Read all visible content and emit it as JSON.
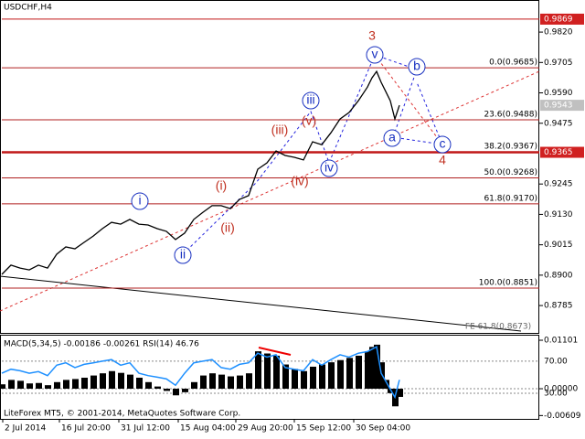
{
  "chart_data": [
    {
      "type": "line",
      "title": "USDCHF,H4",
      "color": "#000000",
      "x": [
        0,
        10,
        20,
        30,
        40,
        50,
        60,
        70,
        80,
        90,
        100,
        110,
        120,
        130,
        140,
        150,
        160,
        170,
        180,
        190,
        200,
        210,
        220,
        230,
        240,
        250,
        260,
        270,
        280,
        290,
        300,
        310,
        320,
        330,
        340,
        350,
        360,
        370,
        380,
        390,
        400,
        405,
        410,
        415,
        420,
        425,
        430,
        435
      ],
      "values": [
        0.8903,
        0.8938,
        0.8927,
        0.892,
        0.8938,
        0.8927,
        0.8979,
        0.9007,
        0.9,
        0.9024,
        0.9048,
        0.9076,
        0.91,
        0.9093,
        0.9111,
        0.9093,
        0.909,
        0.9076,
        0.9066,
        0.9035,
        0.9059,
        0.9111,
        0.9138,
        0.9163,
        0.9163,
        0.9152,
        0.9187,
        0.9201,
        0.9301,
        0.9325,
        0.937,
        0.9353,
        0.9346,
        0.9336,
        0.9405,
        0.9394,
        0.9439,
        0.9491,
        0.9516,
        0.956,
        0.9612,
        0.9647,
        0.9671,
        0.963,
        0.9595,
        0.956,
        0.9491,
        0.9543
      ],
      "xlim": [
        0,
        588
      ],
      "ylim": [
        0.8678,
        0.9893
      ],
      "yticks": [
        {
          "value": 0.982,
          "label": "0.9820"
        },
        {
          "value": 0.9705,
          "label": "0.9705"
        },
        {
          "value": 0.959,
          "label": "0.9590"
        },
        {
          "value": 0.9475,
          "label": "0.9475"
        },
        {
          "value": 0.9245,
          "label": "0.9245"
        },
        {
          "value": 0.913,
          "label": "0.9130"
        },
        {
          "value": 0.9015,
          "label": "0.9015"
        },
        {
          "value": 0.89,
          "label": "0.8900"
        },
        {
          "value": 0.8785,
          "label": "0.8785"
        }
      ],
      "levels": [
        {
          "value": 0.9685,
          "label": "0.0(0.9685)"
        },
        {
          "value": 0.9488,
          "label": "23.6(0.9488)"
        },
        {
          "value": 0.9367,
          "label": "38.2(0.9367)"
        },
        {
          "value": 0.9268,
          "label": "50.0(0.9268)"
        },
        {
          "value": 0.917,
          "label": "61.8(0.9170)"
        },
        {
          "value": 0.8851,
          "label": "100.0(0.8851)"
        }
      ],
      "price_tags": [
        0.9869,
        0.9543,
        0.9365
      ],
      "annotations": [
        "3",
        "v",
        "b",
        "a",
        "c",
        "4",
        "iii",
        "(v)",
        "(iii)",
        "iv",
        "(iv)",
        "(i)",
        "(ii)",
        "i",
        "ii",
        "FE 61.8(0.8673)"
      ]
    },
    {
      "type": "bar",
      "title": "MACD(5,34,5) -0.00186 -0.00261 RSI(14) 46.76",
      "x": [
        0,
        10,
        20,
        30,
        40,
        50,
        60,
        70,
        80,
        90,
        100,
        110,
        120,
        130,
        140,
        150,
        160,
        170,
        180,
        190,
        200,
        210,
        220,
        230,
        240,
        250,
        260,
        270,
        280,
        290,
        300,
        310,
        320,
        330,
        340,
        350,
        360,
        370,
        380,
        390,
        400,
        405,
        410,
        415,
        420,
        425,
        430,
        435
      ],
      "series": [
        {
          "color": "#000000",
          "values": [
            0.001,
            0.002,
            0.0018,
            0.0012,
            0.0013,
            0.0008,
            0.0015,
            0.002,
            0.0022,
            0.0025,
            0.003,
            0.0035,
            0.004,
            0.0036,
            0.0032,
            0.0025,
            0.0015,
            0.0005,
            -0.0005,
            -0.0015,
            -0.0008,
            0.0015,
            0.003,
            0.0035,
            0.0032,
            0.0028,
            0.003,
            0.0035,
            0.0085,
            0.008,
            0.0075,
            0.0055,
            0.0045,
            0.004,
            0.005,
            0.0055,
            0.006,
            0.0065,
            0.007,
            0.0075,
            0.0085,
            0.0095,
            0.01,
            0.006,
            0.002,
            -0.001,
            -0.004,
            -0.00186
          ]
        },
        {
          "color": "#1e90ff",
          "axis": "y2",
          "values": [
            55,
            60,
            58,
            55,
            57,
            52,
            65,
            68,
            62,
            66,
            68,
            70,
            72,
            65,
            68,
            55,
            52,
            50,
            48,
            40,
            55,
            68,
            70,
            72,
            62,
            60,
            66,
            68,
            80,
            75,
            78,
            62,
            60,
            58,
            72,
            65,
            72,
            78,
            75,
            80,
            82,
            85,
            88,
            55,
            45,
            35,
            25,
            46.76
          ]
        }
      ],
      "xlim": [
        0,
        588
      ],
      "ylim": [
        -0.00685,
        0.01226
      ],
      "y2lim": [
        -2,
        103
      ],
      "yticks": [
        0.01101,
        {
          "value": 0,
          "label": "0.00000"
        },
        -0.00609
      ],
      "y2ticks": [
        {
          "value": 70,
          "label": "70.00"
        },
        {
          "value": 30,
          "label": "30.00"
        }
      ],
      "xticks": [
        {
          "value": 1,
          "label": "2 Jul 2014"
        },
        {
          "value": 63,
          "label": "16 Jul 20:00"
        },
        {
          "value": 128,
          "label": "31 Jul 12:00"
        },
        {
          "value": 193,
          "label": "15 Aug 04:00"
        },
        {
          "value": 256,
          "label": "29 Aug 20:00"
        },
        {
          "value": 320,
          "label": "15 Sep 12:00"
        },
        {
          "value": 385,
          "label": "30 Sep 04:00"
        }
      ]
    }
  ],
  "footer": "LiteForex MT5, © 2001-2014, MetaQuotes Software Corp."
}
